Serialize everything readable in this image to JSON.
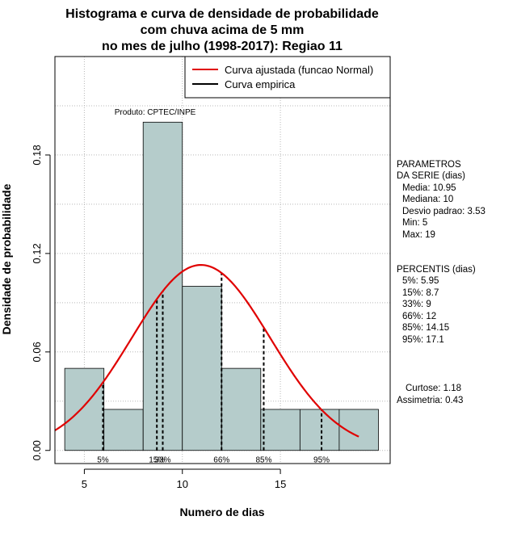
{
  "chart_data": {
    "type": "bar",
    "title": [
      "Histograma e curva de densidade de probabilidade",
      "com chuva acima de 5 mm",
      "no mes de julho (1998-2017): Regiao 11"
    ],
    "xlabel": "Numero de dias",
    "ylabel": "Densidade de probabilidade",
    "xlim": [
      3.5,
      20.6
    ],
    "ylim": [
      -0.008,
      0.24
    ],
    "xticks": [
      5,
      10,
      15
    ],
    "xtick_labels": [
      "5",
      "10",
      "15"
    ],
    "yticks": [
      0.0,
      0.06,
      0.12,
      0.18
    ],
    "ytick_labels": [
      "0.00",
      "0.06",
      "0.12",
      "0.18"
    ],
    "grid": true,
    "bins": [
      {
        "left": 4,
        "right": 6,
        "density": 0.05
      },
      {
        "left": 6,
        "right": 8,
        "density": 0.025
      },
      {
        "left": 8,
        "right": 10,
        "density": 0.2
      },
      {
        "left": 10,
        "right": 12,
        "density": 0.1
      },
      {
        "left": 12,
        "right": 14,
        "density": 0.05
      },
      {
        "left": 14,
        "right": 16,
        "density": 0.025
      },
      {
        "left": 16,
        "right": 18,
        "density": 0.025
      },
      {
        "left": 18,
        "right": 20,
        "density": 0.025
      }
    ],
    "normal_curve": {
      "mean": 10.95,
      "sd": 3.53,
      "x_from": 3.5,
      "x_to": 19.0
    },
    "percentile_lines": [
      {
        "label": "5%",
        "value": 5.95
      },
      {
        "label": "15%",
        "value": 8.7
      },
      {
        "label": "33%",
        "value": 9
      },
      {
        "label": "66%",
        "value": 12
      },
      {
        "label": "85%",
        "value": 14.15
      },
      {
        "label": "95%",
        "value": 17.1
      }
    ],
    "legend": {
      "location": "top-right",
      "entries": [
        {
          "label": "Curva ajustada (funcao Normal)",
          "color": "#e00000"
        },
        {
          "label": "Curva empirica",
          "color": "#000000"
        }
      ]
    },
    "annotation": "Produto: CPTEC/INPE",
    "colors": {
      "bar_fill": "#b5cccb",
      "curve": "#e00000",
      "grid": "#b8b8b8"
    }
  },
  "stats": {
    "params_header": [
      "PARAMETROS",
      "DA SERIE (dias)"
    ],
    "params": [
      "Media: 10.95",
      "Mediana: 10",
      "Desvio padrao: 3.53",
      "Min: 5",
      "Max: 19"
    ],
    "percentis_header": "PERCENTIS (dias)",
    "percentis": [
      "5%: 5.95",
      "15%: 8.7",
      "33%: 9",
      "66%: 12",
      "85%: 14.15",
      "95%: 17.1"
    ],
    "shape": [
      "Curtose: 1.18",
      "Assimetria: 0.43"
    ]
  }
}
